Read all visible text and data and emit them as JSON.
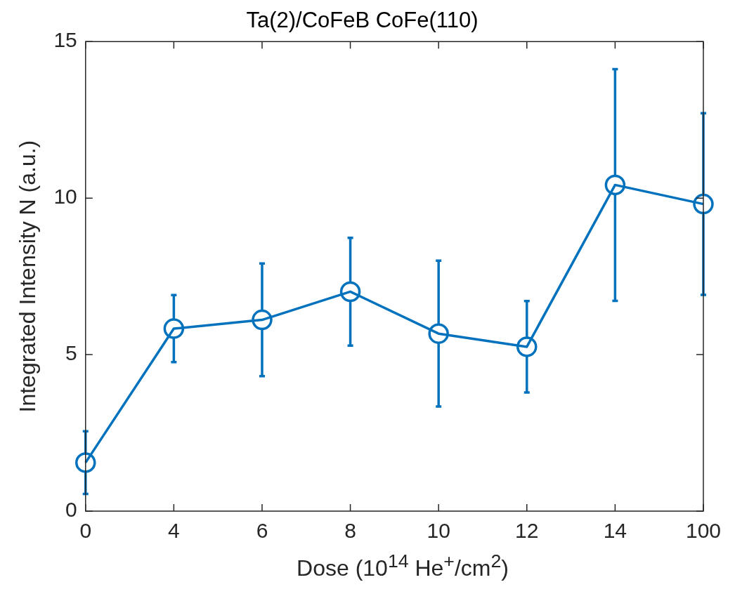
{
  "chart_data": {
    "type": "line",
    "title": "Ta(2)/CoFeB CoFe(110)",
    "xlabel": "Dose (10$^{14}$ He$^{+}$/cm$^{2}$)",
    "ylabel": "Integrated Intensity N (a.u.)",
    "categories": [
      "0",
      "4",
      "6",
      "8",
      "10",
      "12",
      "14",
      "100"
    ],
    "series": [
      {
        "color": "#0072bd",
        "values": [
          1.55,
          5.83,
          6.11,
          7.01,
          5.67,
          5.25,
          10.42,
          9.81
        ],
        "errors": [
          1.0,
          1.07,
          1.8,
          1.72,
          2.33,
          1.46,
          3.7,
          2.9
        ]
      }
    ],
    "ylim": [
      0,
      15
    ],
    "yticks": [
      0,
      5,
      10,
      15
    ],
    "grid": false,
    "legend": false,
    "marker": "circle",
    "line_style": "solid"
  }
}
